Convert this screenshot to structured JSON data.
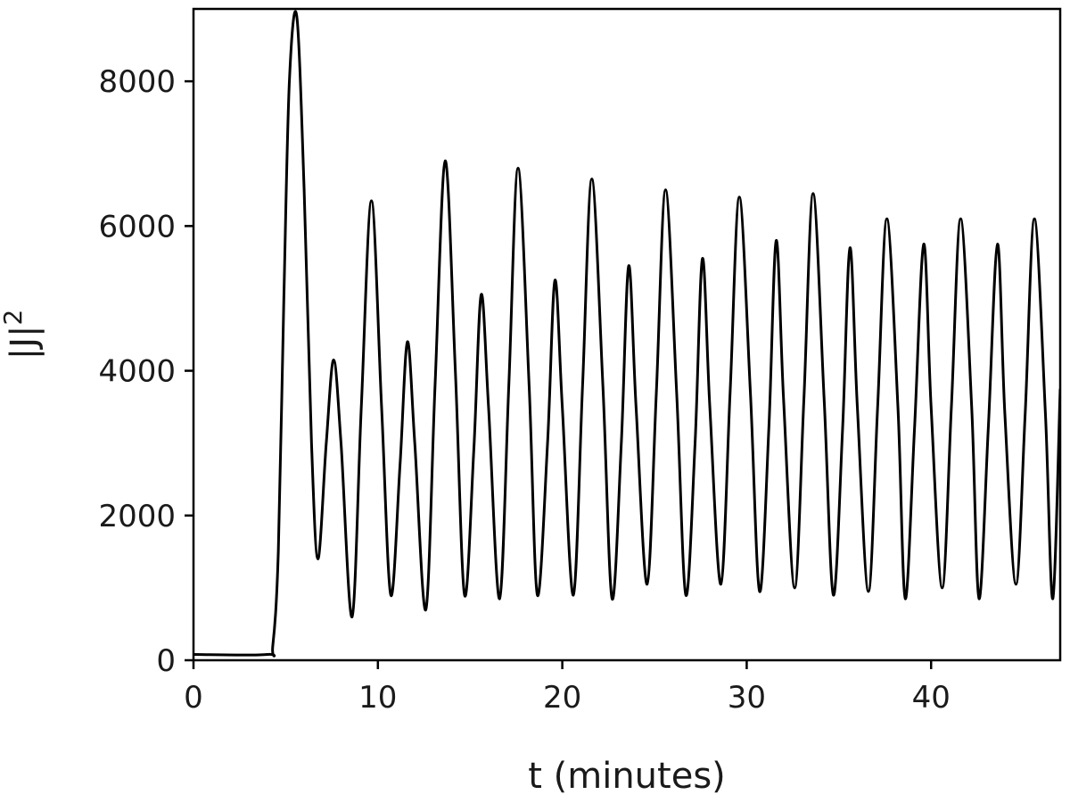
{
  "chart_data": {
    "type": "line",
    "title": "",
    "xlabel": "t (minutes)",
    "ylabel": "|J|",
    "ylabel_superscript": "2",
    "xlim": [
      0,
      47
    ],
    "ylim": [
      0,
      9000
    ],
    "xticks": [
      0,
      10,
      20,
      30,
      40
    ],
    "xtick_labels": [
      "0",
      "10",
      "20",
      "30",
      "40"
    ],
    "yticks": [
      0,
      2000,
      4000,
      6000,
      8000
    ],
    "ytick_labels": [
      "0",
      "2000",
      "4000",
      "6000",
      "8000"
    ],
    "grid": false,
    "line_color": "#000000",
    "series": [
      {
        "x": [
          0,
          4.0,
          4.3,
          4.6,
          4.9,
          5.2,
          5.6,
          6.0,
          6.4,
          6.75,
          7.2,
          7.6,
          8.0,
          8.6,
          9.1,
          9.65,
          10.2,
          10.7,
          11.2,
          11.6,
          12.0,
          12.6,
          13.1,
          13.65,
          14.2,
          14.7,
          15.2,
          15.6,
          16.0,
          16.6,
          17.1,
          17.6,
          18.2,
          18.65,
          19.2,
          19.6,
          20.0,
          20.6,
          21.1,
          21.6,
          22.2,
          22.7,
          23.2,
          23.6,
          24.0,
          24.6,
          25.1,
          25.6,
          26.2,
          26.7,
          27.2,
          27.6,
          28.0,
          28.6,
          29.1,
          29.6,
          30.2,
          30.7,
          31.2,
          31.6,
          32.0,
          32.6,
          33.1,
          33.6,
          34.2,
          34.7,
          35.2,
          35.6,
          36.0,
          36.6,
          37.1,
          37.6,
          38.2,
          38.6,
          39.1,
          39.6,
          40.0,
          40.6,
          41.1,
          41.6,
          42.2,
          42.6,
          43.1,
          43.6,
          44.0,
          44.6,
          45.1,
          45.6,
          46.2,
          46.6,
          47.0
        ],
        "y": [
          80,
          80,
          200,
          1500,
          5000,
          8000,
          8900,
          6500,
          3000,
          1400,
          3000,
          4150,
          3000,
          600,
          3500,
          6350,
          3500,
          900,
          2700,
          4400,
          3000,
          700,
          3800,
          6900,
          4000,
          900,
          2900,
          5050,
          3500,
          850,
          3800,
          6800,
          3800,
          900,
          3000,
          5250,
          3500,
          900,
          3800,
          6650,
          3800,
          850,
          3000,
          5450,
          3500,
          1050,
          3700,
          6500,
          3700,
          900,
          3000,
          5550,
          3500,
          1050,
          3700,
          6400,
          3700,
          950,
          3200,
          5800,
          3600,
          1000,
          3600,
          6450,
          3600,
          900,
          3200,
          5700,
          3500,
          950,
          3500,
          6100,
          3500,
          850,
          3200,
          5750,
          3500,
          1000,
          3500,
          6100,
          3500,
          850,
          3200,
          5750,
          3400,
          1050,
          3400,
          6100,
          3400,
          850,
          3750
        ]
      }
    ]
  }
}
